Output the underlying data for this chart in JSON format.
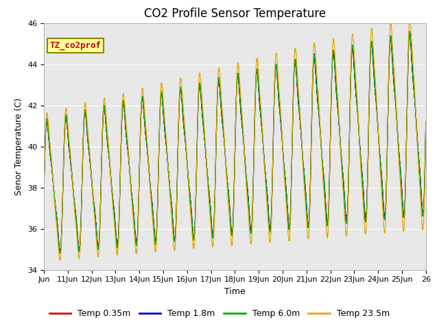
{
  "title": "CO2 Profile Sensor Temperature",
  "xlabel": "Time",
  "ylabel": "Senor Temperature (C)",
  "ylim": [
    34,
    46
  ],
  "xlim_days": [
    10,
    26
  ],
  "xtick_labels": [
    "Jun",
    "11Jun",
    "12Jun",
    "13Jun",
    "14Jun",
    "15Jun",
    "16Jun",
    "17Jun",
    "18Jun",
    "19Jun",
    "20Jun",
    "21Jun",
    "22Jun",
    "23Jun",
    "24Jun",
    "25Jun",
    "26"
  ],
  "xtick_positions": [
    10,
    11,
    12,
    13,
    14,
    15,
    16,
    17,
    18,
    19,
    20,
    21,
    22,
    23,
    24,
    25,
    26
  ],
  "annotation_text": "TZ_co2prof",
  "annotation_color": "#cc0000",
  "annotation_bg": "#ffff99",
  "annotation_border": "#888800",
  "legend_entries": [
    "Temp 0.35m",
    "Temp 1.8m",
    "Temp 6.0m",
    "Temp 23.5m"
  ],
  "line_colors": [
    "#dd0000",
    "#0000cc",
    "#00aa00",
    "#ddaa00"
  ],
  "bg_color": "#e8e8e8",
  "fig_bg": "#ffffff",
  "title_fontsize": 12,
  "axis_label_fontsize": 9,
  "tick_fontsize": 8,
  "legend_fontsize": 9,
  "yticks": [
    34,
    36,
    38,
    40,
    42,
    44,
    46
  ]
}
